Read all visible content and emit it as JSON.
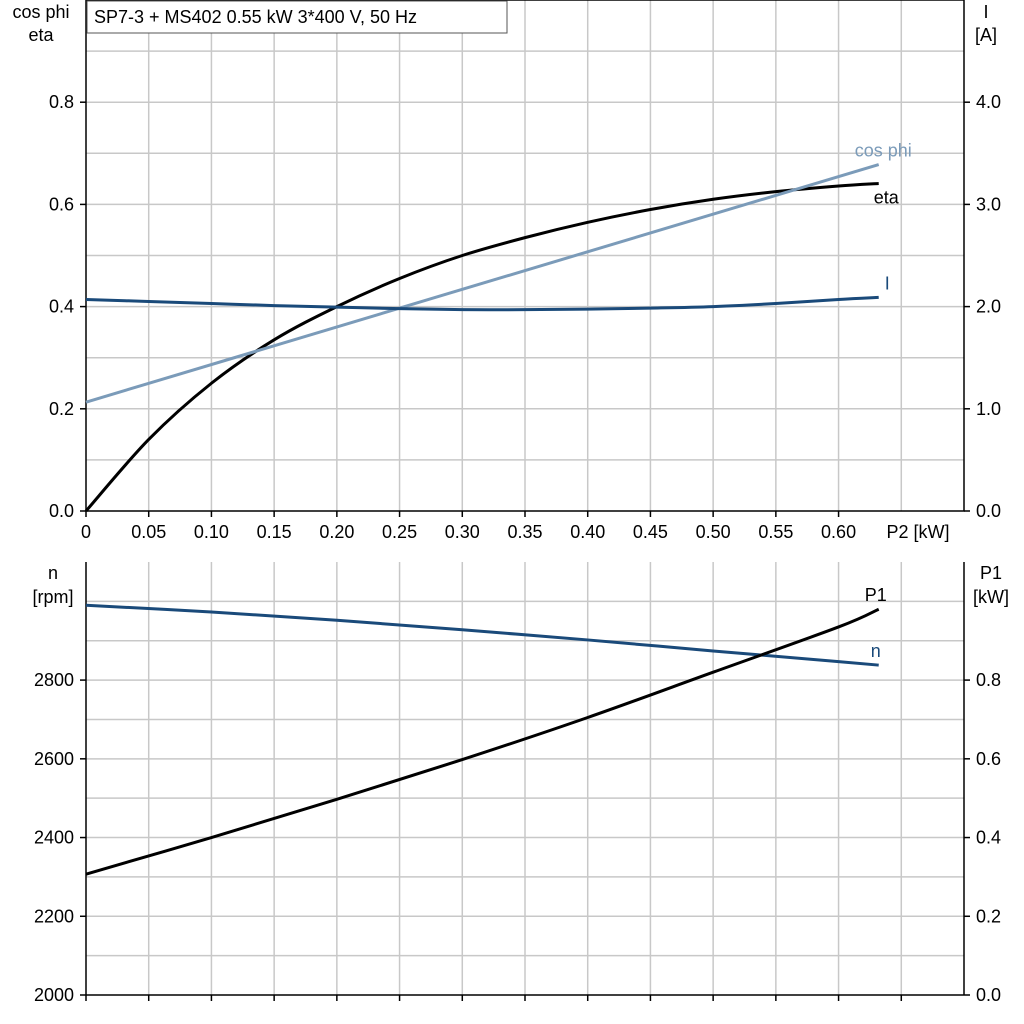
{
  "title": "SP7-3 + MS402   0.55 kW   3*400 V, 50 Hz",
  "colors": {
    "eta": "#000000",
    "cos_phi": "#7b9bb9",
    "I": "#1a4a7a",
    "n": "#1a4a7a",
    "P1": "#000000",
    "grid": "#c8c8c8"
  },
  "top": {
    "left_axis_label": [
      "cos phi",
      "eta"
    ],
    "right_axis_label": [
      "I",
      "[A]"
    ],
    "x_axis_label": "P2 [kW]",
    "x_ticks": [
      "0",
      "0.05",
      "0.10",
      "0.15",
      "0.20",
      "0.25",
      "0.30",
      "0.35",
      "0.40",
      "0.45",
      "0.50",
      "0.55",
      "0.60"
    ],
    "left_ticks": [
      "0.0",
      "0.2",
      "0.4",
      "0.6",
      "0.8"
    ],
    "right_ticks": [
      "0.0",
      "1.0",
      "2.0",
      "3.0",
      "4.0"
    ]
  },
  "bottom": {
    "left_axis_label": [
      "n",
      "[rpm]"
    ],
    "right_axis_label": [
      "P1",
      "[kW]"
    ],
    "left_ticks": [
      "2000",
      "2200",
      "2400",
      "2600",
      "2800"
    ],
    "right_ticks": [
      "0.0",
      "0.2",
      "0.4",
      "0.6",
      "0.8"
    ]
  },
  "chart_data": [
    {
      "type": "line",
      "title": "SP7-3 + MS402   0.55 kW   3*400 V, 50 Hz",
      "xlabel": "P2 [kW]",
      "ylabel": "cos phi / eta",
      "y2label": "I [A]",
      "xlim": [
        0,
        0.7
      ],
      "ylim": [
        0,
        1.0
      ],
      "y2lim": [
        0,
        5.0
      ],
      "grid": true,
      "series": [
        {
          "name": "eta",
          "axis": "left",
          "x": [
            0,
            0.05,
            0.1,
            0.15,
            0.2,
            0.25,
            0.3,
            0.35,
            0.4,
            0.45,
            0.5,
            0.55,
            0.6,
            0.632
          ],
          "y": [
            0.0,
            0.14,
            0.25,
            0.335,
            0.4,
            0.455,
            0.5,
            0.535,
            0.565,
            0.59,
            0.61,
            0.625,
            0.636,
            0.641
          ]
        },
        {
          "name": "cos phi",
          "axis": "left",
          "x": [
            0,
            0.632
          ],
          "y": [
            0.213,
            0.678
          ]
        },
        {
          "name": "I",
          "axis": "right",
          "x": [
            0,
            0.05,
            0.1,
            0.15,
            0.2,
            0.25,
            0.3,
            0.35,
            0.4,
            0.45,
            0.5,
            0.55,
            0.6,
            0.632
          ],
          "y": [
            2.07,
            2.05,
            2.03,
            2.01,
            1.995,
            1.98,
            1.97,
            1.97,
            1.975,
            1.985,
            2.0,
            2.03,
            2.07,
            2.09
          ]
        }
      ]
    },
    {
      "type": "line",
      "xlabel": "P2 [kW]",
      "ylabel": "n [rpm]",
      "y2label": "P1 [kW]",
      "xlim": [
        0,
        0.7
      ],
      "ylim": [
        2000,
        3100
      ],
      "y2lim": [
        0,
        1.1
      ],
      "grid": true,
      "series": [
        {
          "name": "n",
          "axis": "left",
          "x": [
            0,
            0.1,
            0.2,
            0.3,
            0.4,
            0.5,
            0.6,
            0.632
          ],
          "y": [
            2990,
            2973,
            2952,
            2928,
            2902,
            2874,
            2847,
            2838
          ]
        },
        {
          "name": "P1",
          "axis": "right",
          "x": [
            0,
            0.1,
            0.2,
            0.3,
            0.4,
            0.5,
            0.6,
            0.632
          ],
          "y": [
            0.307,
            0.4,
            0.497,
            0.598,
            0.705,
            0.82,
            0.935,
            0.98
          ]
        }
      ]
    }
  ]
}
